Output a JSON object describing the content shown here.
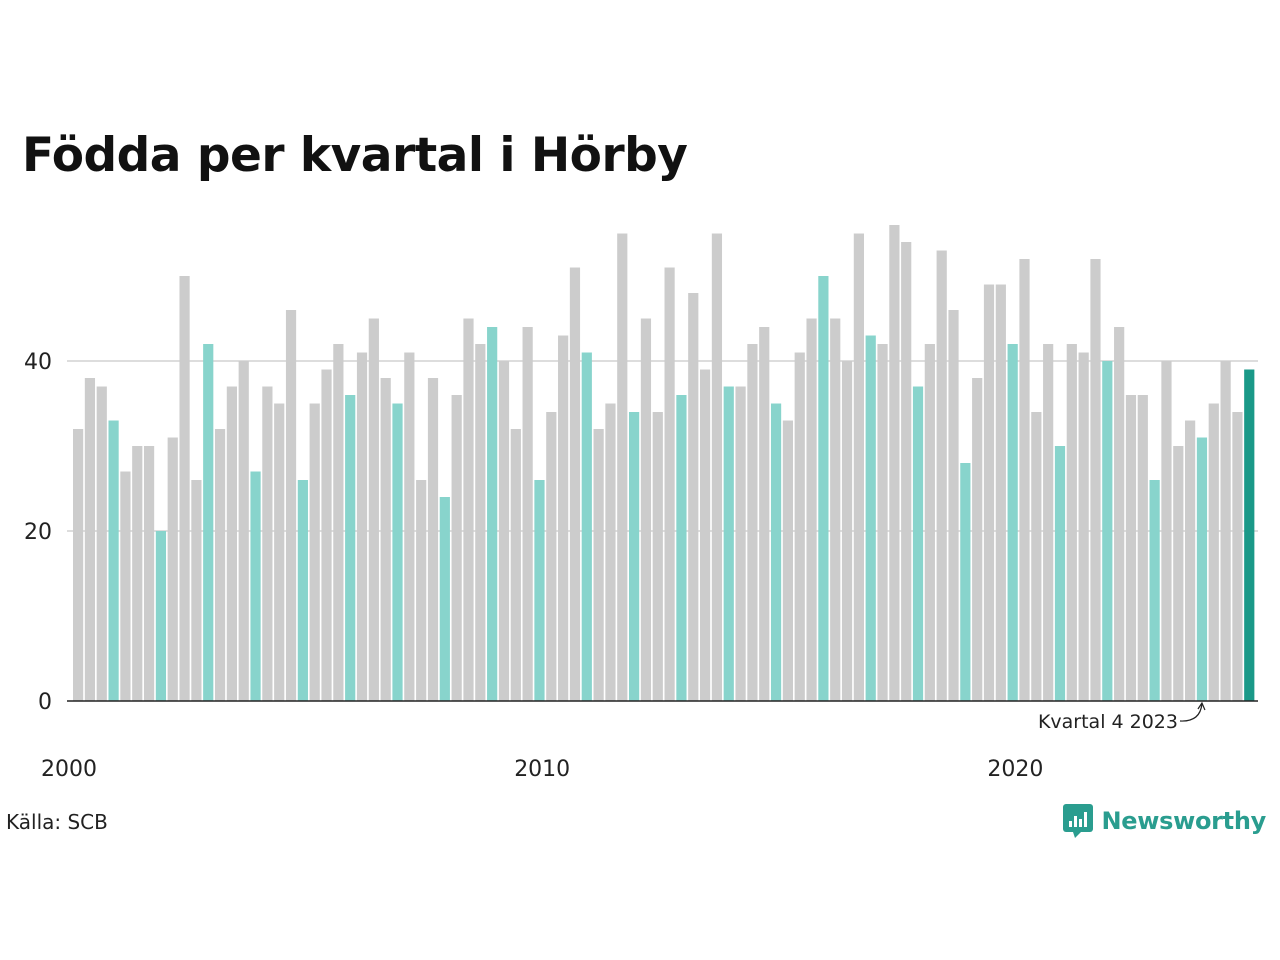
{
  "chart_data": {
    "type": "bar",
    "title": "Födda per kvartal i Hörby",
    "xlabel": "",
    "ylabel": "",
    "ylim": [
      0,
      60
    ],
    "grid": true,
    "y_ticks": [
      "0",
      "20",
      "40"
    ],
    "x_ticks": [
      "2000",
      "2010",
      "2020"
    ],
    "start_year": 2000,
    "highlight_quarter": 4,
    "annotation": "Kvartal 4 2023",
    "colors": {
      "default": "#cccccc",
      "q4": "#88d4cc",
      "latest": "#1a9988",
      "grid": "#dddddd",
      "axis": "#222222"
    },
    "values": [
      32,
      38,
      37,
      33,
      27,
      30,
      30,
      20,
      31,
      50,
      26,
      42,
      32,
      37,
      40,
      27,
      37,
      35,
      46,
      26,
      35,
      39,
      42,
      36,
      41,
      45,
      38,
      35,
      41,
      26,
      38,
      24,
      36,
      45,
      42,
      44,
      40,
      32,
      44,
      26,
      34,
      43,
      51,
      41,
      32,
      35,
      55,
      34,
      45,
      34,
      51,
      36,
      48,
      39,
      55,
      37,
      37,
      42,
      44,
      35,
      33,
      41,
      45,
      50,
      45,
      40,
      55,
      43,
      42,
      56,
      54,
      37,
      42,
      53,
      46,
      28,
      38,
      49,
      49,
      42,
      52,
      34,
      42,
      30,
      42,
      41,
      52,
      40,
      44,
      36,
      36,
      26,
      40,
      30,
      33,
      31,
      35,
      40,
      34,
      39
    ]
  },
  "footer": {
    "source": "Källa: SCB",
    "brand": "Newsworthy"
  }
}
